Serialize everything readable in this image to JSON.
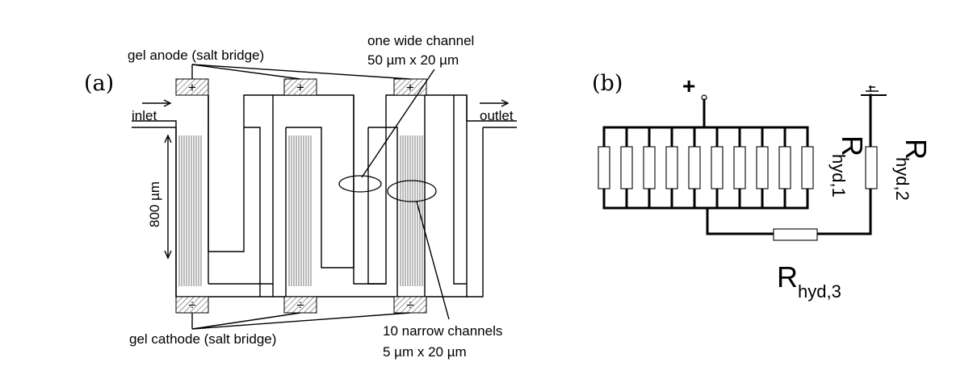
{
  "panel_a": {
    "panel_label": "(a)",
    "anode_label": "gel anode (salt bridge)",
    "cathode_label": "gel cathode (salt bridge)",
    "inlet_label": "inlet",
    "outlet_label": "outlet",
    "length_label": "800 µm",
    "wide_channel_line1": "one wide channel",
    "wide_channel_line2": "50 µm x 20 µm",
    "narrow_channels_line1": "10 narrow channels",
    "narrow_channels_line2": "5 µm x 20 µm",
    "anode_symbol": "+",
    "cathode_symbol": "÷"
  },
  "panel_b": {
    "panel_label": "(b)",
    "plus_symbol": "+",
    "r1_main": "R",
    "r1_sub": "hyd,1",
    "r2_main": "R",
    "r2_sub": "hyd,2",
    "r3_main": "R",
    "r3_sub": "hyd,3",
    "parallel_resistor_count": 10
  }
}
